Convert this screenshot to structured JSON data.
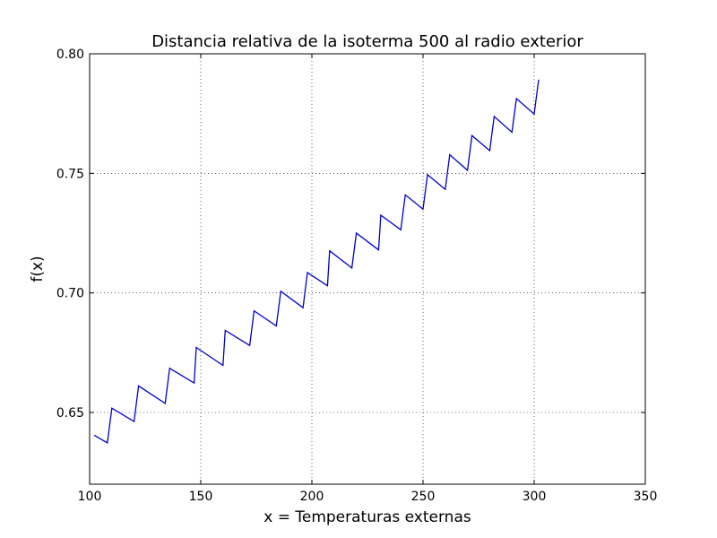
{
  "chart_data": {
    "type": "line",
    "title": "Distancia relativa de la isoterma 500 al radio exterior",
    "xlabel": "x = Temperaturas externas",
    "ylabel": "f(x)",
    "xlim": [
      100,
      350
    ],
    "ylim": [
      0.62,
      0.8
    ],
    "xticks": [
      100,
      150,
      200,
      250,
      300,
      350
    ],
    "yticks": [
      0.65,
      0.7,
      0.75,
      0.8
    ],
    "xtick_labels": [
      "100",
      "150",
      "200",
      "250",
      "300",
      "350"
    ],
    "ytick_labels": [
      "0.65",
      "0.70",
      "0.75",
      "0.80"
    ],
    "grid": true,
    "series": [
      {
        "color": "#0000cc",
        "x": [
          102,
          108,
          110,
          120,
          122,
          134,
          136,
          147,
          148,
          160,
          161,
          172,
          174,
          184,
          186,
          196,
          198,
          207,
          208,
          218,
          220,
          230,
          231,
          240,
          242,
          250,
          252,
          260,
          262,
          270,
          272,
          280,
          282,
          290,
          292,
          300,
          302
        ],
        "y": [
          0.6405,
          0.6373,
          0.6518,
          0.6462,
          0.6611,
          0.6538,
          0.6685,
          0.6623,
          0.6772,
          0.6697,
          0.6843,
          0.678,
          0.6925,
          0.6862,
          0.7007,
          0.6938,
          0.7085,
          0.703,
          0.7176,
          0.7104,
          0.725,
          0.718,
          0.7325,
          0.7264,
          0.741,
          0.735,
          0.7495,
          0.7433,
          0.7578,
          0.7513,
          0.7658,
          0.7595,
          0.7738,
          0.7672,
          0.7813,
          0.7748,
          0.7892
        ]
      }
    ]
  }
}
